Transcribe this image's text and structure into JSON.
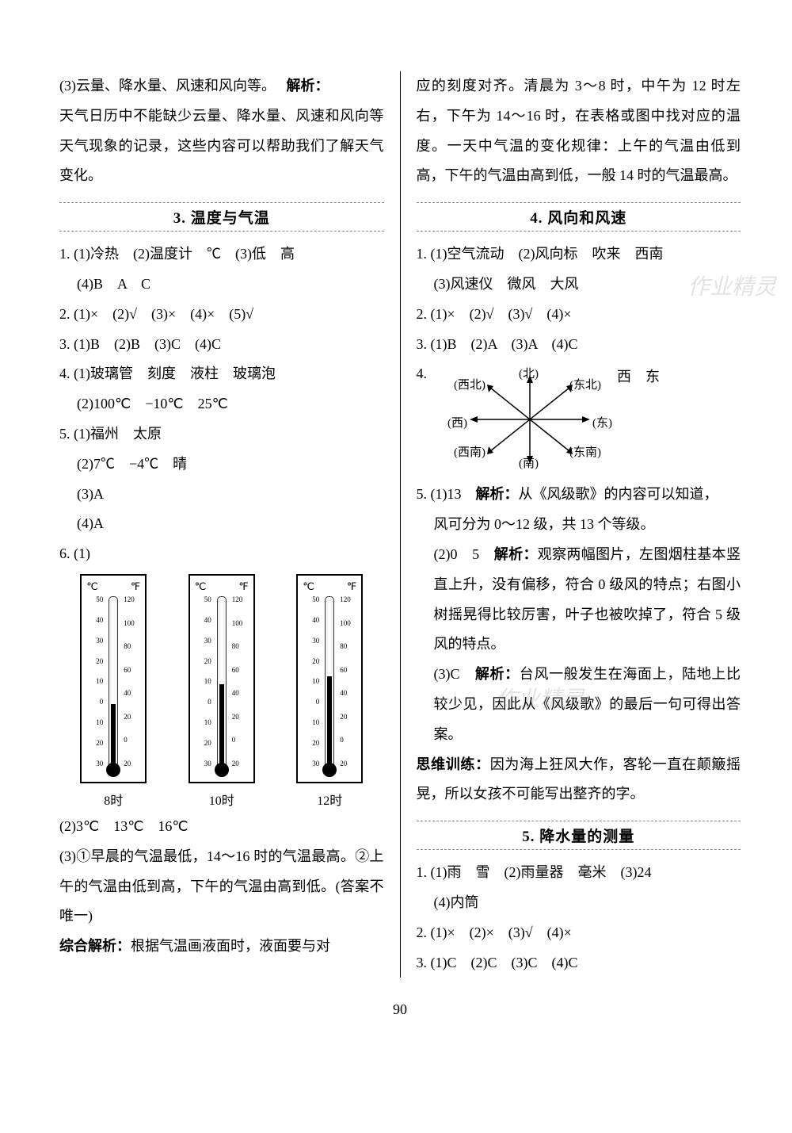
{
  "page_number": "90",
  "left": {
    "p1": "(3)云量、降水量、风速和风向等。",
    "p1_label": "解析：",
    "p2": "天气日历中不能缺少云量、降水量、风速和风向等天气现象的记录，这些内容可以帮助我们了解天气变化。",
    "section3_title": "3. 温度与气温",
    "q1l1": "1. (1)冷热　(2)温度计　℃　(3)低　高",
    "q1l2": "(4)B　A　C",
    "q2": "2. (1)×　(2)√　(3)×　(4)×　(5)√",
    "q3": "3. (1)B　(2)B　(3)C　(4)C",
    "q4l1": "4. (1)玻璃管　刻度　液柱　玻璃泡",
    "q4l2": "(2)100℃　−10℃　25℃",
    "q5l1": "5. (1)福州　太原",
    "q5l2": "(2)7℃　−4℃　晴",
    "q5l3": "(3)A",
    "q5l4": "(4)A",
    "q6l1": "6. (1)",
    "q6l2": "(2)3℃　13℃　16℃",
    "q6l3": "(3)①早晨的气温最低，14～16 时的气温最高。②上午的气温由低到高，下午的气温由高到低。(答案不唯一)",
    "q6analysis_label": "综合解析：",
    "q6analysis": "根据气温画液面时，液面要与对"
  },
  "right": {
    "p_cont": "应的刻度对齐。清晨为 3～8 时，中午为 12 时左右，下午为 14～16 时，在表格或图中找对应的温度。一天中气温的变化规律：上午的气温由低到高，下午的气温由高到低，一般 14 时的气温最高。",
    "section4_title": "4. 风向和风速",
    "r1l1": "1. (1)空气流动　(2)风向标　吹来　西南",
    "r1l2": "(3)风速仪　微风　大风",
    "r2": "2. (1)×　(2)√　(3)√　(4)×",
    "r3": "3. (1)B　(2)A　(3)A　(4)C",
    "r4": "4.",
    "r4_answer": "西　东",
    "r5l1_a": "5. (1)13　",
    "r5l1_lbl": "解析：",
    "r5l1_b": "从《风级歌》的内容可以知道，",
    "r5l2": "风可分为 0～12 级，共 13 个等级。",
    "r5l3_a": "(2)0　5　",
    "r5l3_lbl": "解析：",
    "r5l3_b": "观察两幅图片，左图烟柱基本竖直上升，没有偏移，符合 0 级风的特点；右图小树摇晃得比较厉害，叶子也被吹掉了，符合 5 级风的特点。",
    "r5l4_a": "(3)C　",
    "r5l4_lbl": "解析：",
    "r5l4_b": "台风一般发生在海面上，陆地上比较少见，因此从《风级歌》的最后一句可得出答案。",
    "think_label": "思维训练：",
    "think": "因为海上狂风大作，客轮一直在颠簸摇晃，所以女孩不可能写出整齐的字。",
    "section5_title": "5. 降水量的测量",
    "s1l1": "1. (1)雨　雪　(2)雨量器　毫米　(3)24",
    "s1l2": "(4)内筒",
    "s2": "2. (1)×　(2)×　(3)√　(4)×",
    "s3": "3. (1)C　(2)C　(3)C　(4)C"
  },
  "thermometers": {
    "scale_c": [
      "50",
      "40",
      "30",
      "20",
      "10",
      "0",
      "10",
      "20",
      "30"
    ],
    "scale_f": [
      "120",
      "100",
      "80",
      "60",
      "40",
      "20",
      "0",
      "20"
    ],
    "unit_c": "℃",
    "unit_f": "℉",
    "items": [
      {
        "time": "8时",
        "liquid_height": 80
      },
      {
        "time": "10时",
        "liquid_height": 105
      },
      {
        "time": "12时",
        "liquid_height": 115
      }
    ]
  },
  "compass": {
    "labels": {
      "n": "(北)",
      "s": "(南)",
      "e": "(东)",
      "w": "(西)",
      "ne": "(东北)",
      "nw": "(西北)",
      "se": "(东南)",
      "sw": "(西南)"
    }
  },
  "watermark1": "作业精灵",
  "watermark2": "作业精灵"
}
